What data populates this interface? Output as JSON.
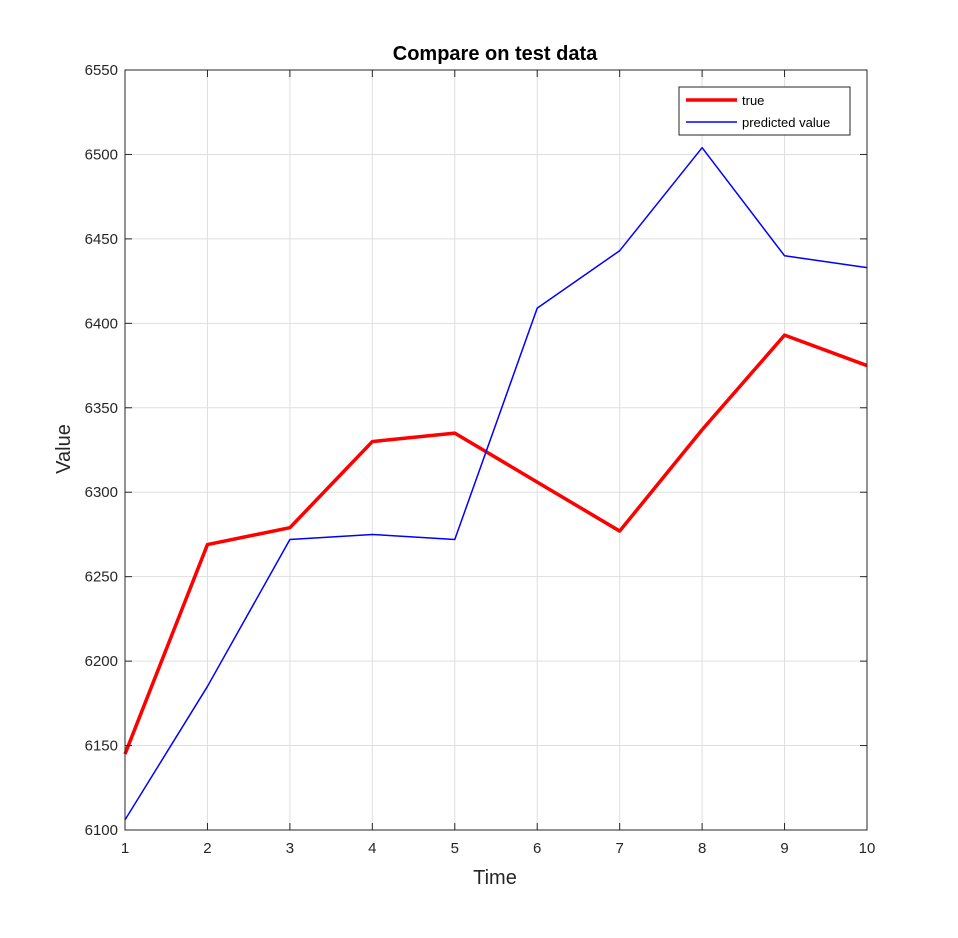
{
  "chart_data": {
    "type": "line",
    "title": "Compare on test data",
    "xlabel": "Time",
    "ylabel": "Value",
    "xlim": [
      1,
      10
    ],
    "ylim": [
      6100,
      6550
    ],
    "x_ticks": [
      1,
      2,
      3,
      4,
      5,
      6,
      7,
      8,
      9,
      10
    ],
    "y_ticks": [
      6100,
      6150,
      6200,
      6250,
      6300,
      6350,
      6400,
      6450,
      6500,
      6550
    ],
    "grid": true,
    "legend_position": "top-right",
    "x": [
      1,
      2,
      3,
      4,
      5,
      6,
      7,
      8,
      9,
      10
    ],
    "series": [
      {
        "name": "true",
        "color": "#ff0000",
        "line_style": "thick",
        "values": [
          6145,
          6269,
          6279,
          6330,
          6335,
          6306,
          6277,
          6337,
          6393,
          6375
        ]
      },
      {
        "name": "predicted value",
        "color": "#0000ff",
        "line_style": "thin",
        "values": [
          6106,
          6185,
          6272,
          6275,
          6272,
          6409,
          6443,
          6504,
          6440,
          6433
        ]
      }
    ]
  }
}
